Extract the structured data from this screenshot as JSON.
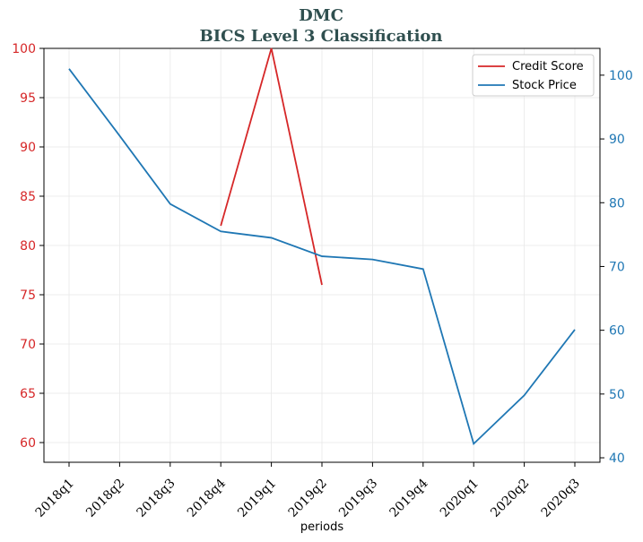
{
  "chart_data": {
    "type": "line",
    "title": "DMC",
    "subtitle": "BICS Level 3 Classification",
    "xlabel": "periods",
    "categories": [
      "2018q1",
      "2018q2",
      "2018q3",
      "2018q4",
      "2019q1",
      "2019q2",
      "2019q3",
      "2019q4",
      "2020q1",
      "2020q2",
      "2020q3"
    ],
    "y_left": {
      "lim": [
        58,
        100
      ],
      "ticks": [
        60,
        65,
        70,
        75,
        80,
        85,
        90,
        95,
        100
      ],
      "color": "#d62728"
    },
    "y_right": {
      "lim": [
        39.3,
        104.2
      ],
      "ticks": [
        40,
        50,
        60,
        70,
        80,
        90,
        100
      ],
      "color": "#1f77b4"
    },
    "grid": true,
    "legend_position": "top-right",
    "series": [
      {
        "name": "Credit Score",
        "axis": "left",
        "color": "#d62728",
        "values": [
          null,
          null,
          null,
          82,
          100,
          76,
          null,
          null,
          null,
          null,
          null
        ]
      },
      {
        "name": "Stock Price",
        "axis": "right",
        "color": "#1f77b4",
        "values": [
          101,
          90.5,
          79.8,
          75.5,
          74.5,
          71.6,
          71.1,
          69.6,
          42.2,
          49.8,
          60.1
        ]
      }
    ]
  }
}
